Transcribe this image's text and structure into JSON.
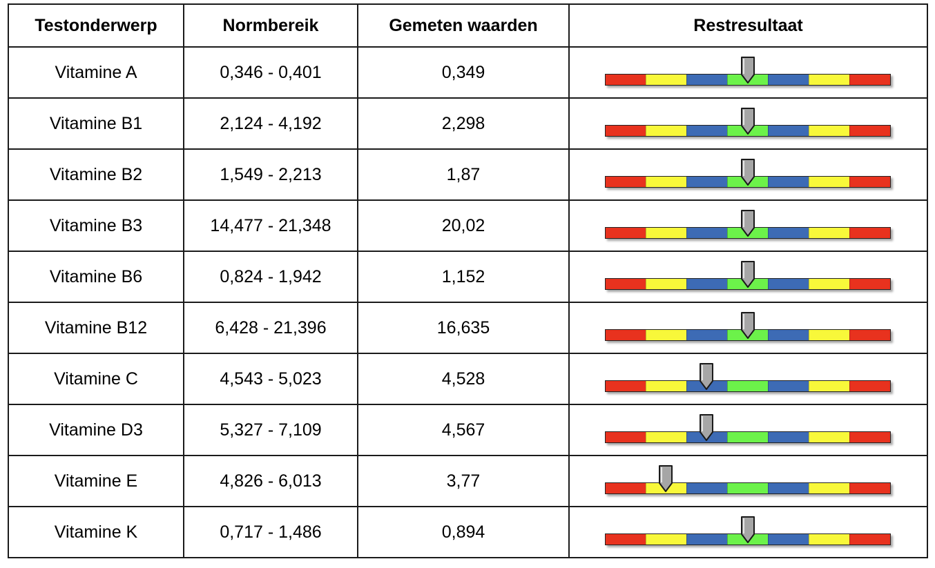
{
  "headers": {
    "subject": "Testonderwerp",
    "range": "Normbereik",
    "measured": "Gemeten waarden",
    "result": "Restresultaat"
  },
  "gauge": {
    "segments": [
      "#e8321e",
      "#f8f83a",
      "#3d6bb5",
      "#6cf24a",
      "#3d6bb5",
      "#f8f83a",
      "#e8321e"
    ],
    "pointer_color": "#a6a6a6"
  },
  "rows": [
    {
      "subject": "Vitamine A",
      "range": "0,346 - 0,401",
      "measured": "0,349",
      "level": 0.5
    },
    {
      "subject": "Vitamine B1",
      "range": "2,124 - 4,192",
      "measured": "2,298",
      "level": 0.5
    },
    {
      "subject": "Vitamine B2",
      "range": "1,549 - 2,213",
      "measured": "1,87",
      "level": 0.5
    },
    {
      "subject": "Vitamine B3",
      "range": "14,477 - 21,348",
      "measured": "20,02",
      "level": 0.5
    },
    {
      "subject": "Vitamine B6",
      "range": "0,824 - 1,942",
      "measured": "1,152",
      "level": 0.5
    },
    {
      "subject": "Vitamine B12",
      "range": "6,428 - 21,396",
      "measured": "16,635",
      "level": 0.5
    },
    {
      "subject": "Vitamine C",
      "range": "4,543 - 5,023",
      "measured": "4,528",
      "level": 0.357
    },
    {
      "subject": "Vitamine D3",
      "range": "5,327 - 7,109",
      "measured": "4,567",
      "level": 0.357
    },
    {
      "subject": "Vitamine E",
      "range": "4,826 - 6,013",
      "measured": "3,77",
      "level": 0.214
    },
    {
      "subject": "Vitamine K",
      "range": "0,717 - 1,486",
      "measured": "0,894",
      "level": 0.5
    }
  ]
}
